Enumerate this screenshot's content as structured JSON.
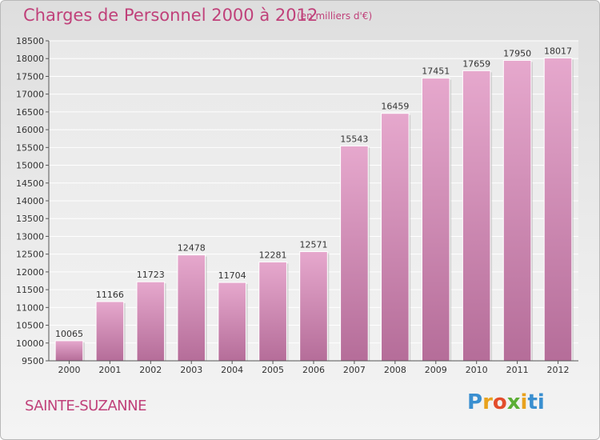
{
  "header": {
    "title": "Charges de Personnel 2000 à 2012",
    "subtitle": "(en milliers d'€)"
  },
  "footer": {
    "commune": "SAINTE-SUZANNE",
    "logo_text": "Proxiti"
  },
  "colors": {
    "bar_top": "#e6a8cd",
    "bar_bottom": "#b56d99",
    "title": "#c0417a"
  },
  "chart_data": {
    "type": "bar",
    "title": "Charges de Personnel 2000 à 2012",
    "subtitle": "(en milliers d'€)",
    "categories": [
      "2000",
      "2001",
      "2002",
      "2003",
      "2004",
      "2005",
      "2006",
      "2007",
      "2008",
      "2009",
      "2010",
      "2011",
      "2012"
    ],
    "values": [
      10065,
      11166,
      11723,
      12478,
      11704,
      12281,
      12571,
      15543,
      16459,
      17451,
      17659,
      17950,
      18017
    ],
    "ylim": [
      9500,
      18500
    ],
    "yticks": [
      9500,
      10000,
      10500,
      11000,
      11500,
      12000,
      12500,
      13000,
      13500,
      14000,
      14500,
      15000,
      15500,
      16000,
      16500,
      17000,
      17500,
      18000,
      18500
    ],
    "grid": true
  }
}
